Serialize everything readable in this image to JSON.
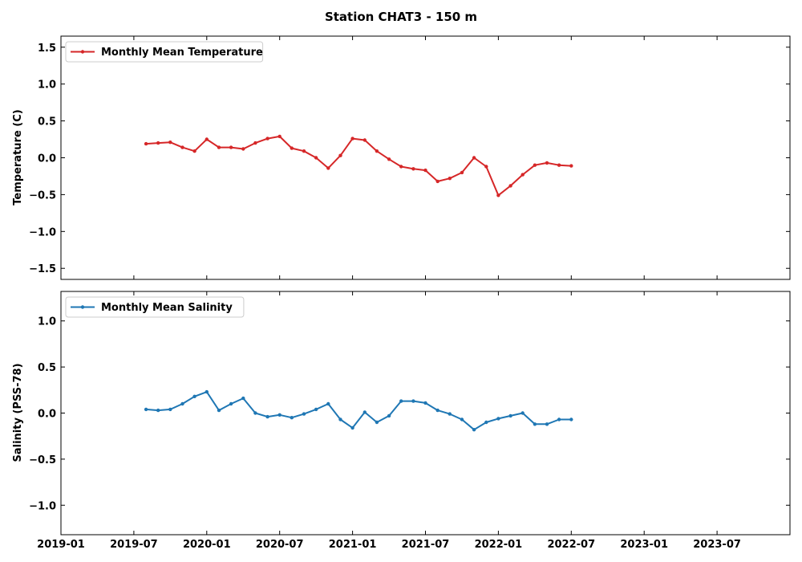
{
  "figure_title": "Station CHAT3 - 150 m",
  "x_axis": {
    "tick_dates": [
      "2019-01",
      "2019-07",
      "2020-01",
      "2020-07",
      "2021-01",
      "2021-07",
      "2022-01",
      "2022-07",
      "2023-01",
      "2023-07"
    ],
    "tick_labels": [
      "2019-01",
      "2019-07",
      "2020-01",
      "2020-07",
      "2021-01",
      "2021-07",
      "2022-01",
      "2022-07",
      "2023-01",
      "2023-07"
    ],
    "range": [
      "2019-01",
      "2024-01"
    ]
  },
  "chart_data": [
    {
      "type": "line",
      "ylabel": "Temperature (C)",
      "ylim": [
        -1.65,
        1.65
      ],
      "yticks": [
        1.5,
        1.0,
        0.5,
        0.0,
        -0.5,
        -1.0,
        -1.5
      ],
      "ytick_labels": [
        "1.5",
        "1.0",
        "0.5",
        "0.0",
        "−0.5",
        "−1.0",
        "−1.5"
      ],
      "legend_position": "upper-left",
      "grid": false,
      "series": [
        {
          "name": "Monthly Mean Temperature",
          "color": "#d62728",
          "x": [
            "2019-08",
            "2019-09",
            "2019-10",
            "2019-11",
            "2019-12",
            "2020-01",
            "2020-02",
            "2020-03",
            "2020-04",
            "2020-05",
            "2020-06",
            "2020-07",
            "2020-08",
            "2020-09",
            "2020-10",
            "2020-11",
            "2020-12",
            "2021-01",
            "2021-02",
            "2021-03",
            "2021-04",
            "2021-05",
            "2021-06",
            "2021-07",
            "2021-08",
            "2021-09",
            "2021-10",
            "2021-11",
            "2021-12",
            "2022-01",
            "2022-02",
            "2022-03",
            "2022-04",
            "2022-05",
            "2022-06",
            "2022-07"
          ],
          "y": [
            0.19,
            0.2,
            0.21,
            0.14,
            0.09,
            0.25,
            0.14,
            0.14,
            0.12,
            0.2,
            0.26,
            0.29,
            0.13,
            0.09,
            0.0,
            -0.14,
            0.03,
            0.26,
            0.24,
            0.09,
            -0.02,
            -0.12,
            -0.15,
            -0.17,
            -0.32,
            -0.28,
            -0.2,
            0.0,
            -0.12,
            -0.51,
            -0.38,
            -0.23,
            -0.1,
            -0.07,
            -0.1,
            -0.11
          ]
        }
      ]
    },
    {
      "type": "line",
      "ylabel": "Salinity (PSS-78)",
      "ylim": [
        -1.32,
        1.32
      ],
      "yticks": [
        1.0,
        0.5,
        0.0,
        -0.5,
        -1.0
      ],
      "ytick_labels": [
        "1.0",
        "0.5",
        "0.0",
        "−0.5",
        "−1.0"
      ],
      "legend_position": "upper-left",
      "grid": false,
      "series": [
        {
          "name": "Monthly Mean Salinity",
          "color": "#1f77b4",
          "x": [
            "2019-08",
            "2019-09",
            "2019-10",
            "2019-11",
            "2019-12",
            "2020-01",
            "2020-02",
            "2020-03",
            "2020-04",
            "2020-05",
            "2020-06",
            "2020-07",
            "2020-08",
            "2020-09",
            "2020-10",
            "2020-11",
            "2020-12",
            "2021-01",
            "2021-02",
            "2021-03",
            "2021-04",
            "2021-05",
            "2021-06",
            "2021-07",
            "2021-08",
            "2021-09",
            "2021-10",
            "2021-11",
            "2021-12",
            "2022-01",
            "2022-02",
            "2022-03",
            "2022-04",
            "2022-05",
            "2022-06",
            "2022-07"
          ],
          "y": [
            0.04,
            0.03,
            0.04,
            0.1,
            0.18,
            0.23,
            0.03,
            0.1,
            0.16,
            0.0,
            -0.04,
            -0.02,
            -0.05,
            -0.01,
            0.04,
            0.1,
            -0.07,
            -0.16,
            0.01,
            -0.1,
            -0.03,
            0.13,
            0.13,
            0.11,
            0.03,
            -0.01,
            -0.07,
            -0.18,
            -0.1,
            -0.06,
            -0.03,
            0.0,
            -0.12,
            -0.12,
            -0.07,
            -0.07
          ]
        }
      ]
    }
  ]
}
